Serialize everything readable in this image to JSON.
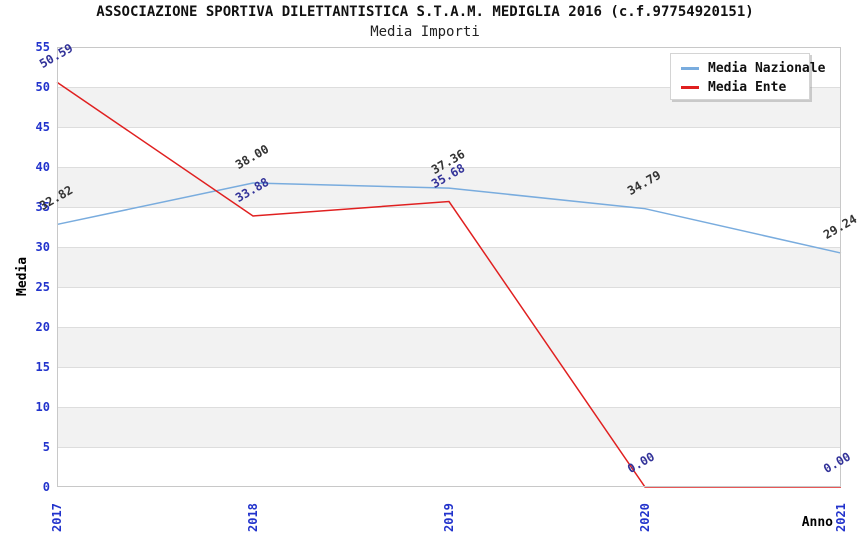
{
  "chart_data": {
    "type": "line",
    "title": "ASSOCIAZIONE SPORTIVA DILETTANTISTICA S.T.A.M. MEDIGLIA 2016 (c.f.97754920151)",
    "subtitle": "Media Importi",
    "xlabel": "Anno",
    "ylabel": "Media",
    "categories": [
      "2017",
      "2018",
      "2019",
      "2020",
      "2021"
    ],
    "ylim": [
      0,
      55
    ],
    "ytick_step": 5,
    "grid": "horizontal bands, alternating white and light gray every 5 units",
    "legend_position": "top-right",
    "series": [
      {
        "name": "Media Nazionale",
        "color": "#79ACDE",
        "label_color": "#333333",
        "values": [
          32.82,
          38.0,
          37.36,
          34.79,
          29.24
        ]
      },
      {
        "name": "Media Ente",
        "color": "#E02020",
        "label_color": "#333399",
        "values": [
          50.59,
          33.88,
          35.68,
          0.0,
          0.0
        ]
      }
    ],
    "colors": {
      "tick_label": "#2233CC",
      "band": "#F2F2F2",
      "gridline": "#DDDDDD",
      "plot_border": "#C8C8C8",
      "background": "#FFFFFF"
    }
  }
}
